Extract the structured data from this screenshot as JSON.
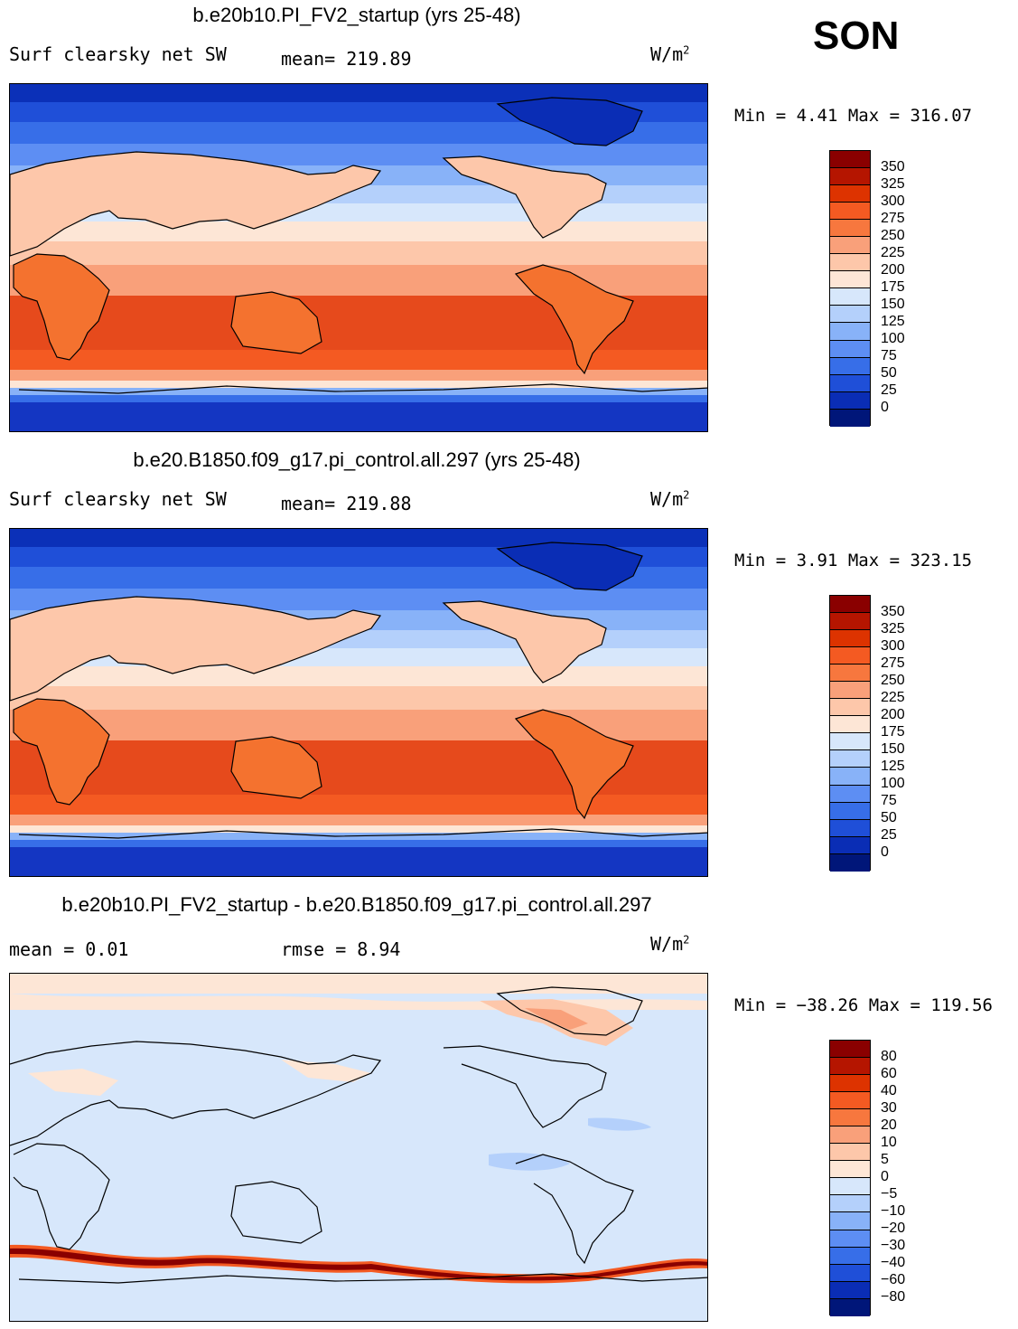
{
  "season": "SON",
  "panels": [
    {
      "title": "b.e20b10.PI_FV2_startup (yrs 25-48)",
      "left_label": "Surf clearsky net SW",
      "center_label": "mean= 219.89",
      "units": "W/m",
      "units_sup": "2",
      "min_max": "Min =    4.41 Max = 316.07",
      "colorbar_labels": [
        "350",
        "325",
        "300",
        "275",
        "250",
        "225",
        "200",
        "175",
        "150",
        "125",
        "100",
        "75",
        "50",
        "25",
        "0"
      ],
      "colorbar_colors": [
        "#8a0000",
        "#b51500",
        "#dd3300",
        "#f45a22",
        "#f7773e",
        "#f9a07a",
        "#fdc7aa",
        "#fde6d6",
        "#d7e7fb",
        "#b4d0fb",
        "#88b2f8",
        "#5d8ef3",
        "#376ee8",
        "#1f4fd8",
        "#0a2db5",
        "#001679"
      ]
    },
    {
      "title": "b.e20.B1850.f09_g17.pi_control.all.297 (yrs 25-48)",
      "left_label": "Surf clearsky net SW",
      "center_label": "mean= 219.88",
      "units": "W/m",
      "units_sup": "2",
      "min_max": "Min =    3.91 Max = 323.15",
      "colorbar_labels": [
        "350",
        "325",
        "300",
        "275",
        "250",
        "225",
        "200",
        "175",
        "150",
        "125",
        "100",
        "75",
        "50",
        "25",
        "0"
      ],
      "colorbar_colors": [
        "#8a0000",
        "#b51500",
        "#dd3300",
        "#f45a22",
        "#f7773e",
        "#f9a07a",
        "#fdc7aa",
        "#fde6d6",
        "#d7e7fb",
        "#b4d0fb",
        "#88b2f8",
        "#5d8ef3",
        "#376ee8",
        "#1f4fd8",
        "#0a2db5",
        "#001679"
      ]
    },
    {
      "title": "b.e20b10.PI_FV2_startup - b.e20.B1850.f09_g17.pi_control.all.297",
      "left_label": "mean =    0.01",
      "center_label": "rmse =    8.94",
      "units": "W/m",
      "units_sup": "2",
      "min_max": "Min = −38.26 Max = 119.56",
      "colorbar_labels": [
        "80",
        "60",
        "40",
        "30",
        "20",
        "10",
        "5",
        "0",
        "−5",
        "−10",
        "−20",
        "−30",
        "−40",
        "−60",
        "−80"
      ],
      "colorbar_colors": [
        "#8a0000",
        "#b51500",
        "#dd3300",
        "#f45a22",
        "#f7773e",
        "#f9a07a",
        "#fdc7aa",
        "#fde6d6",
        "#d7e7fb",
        "#b4d0fb",
        "#88b2f8",
        "#5d8ef3",
        "#376ee8",
        "#1f4fd8",
        "#0a2db5",
        "#001679"
      ]
    }
  ]
}
